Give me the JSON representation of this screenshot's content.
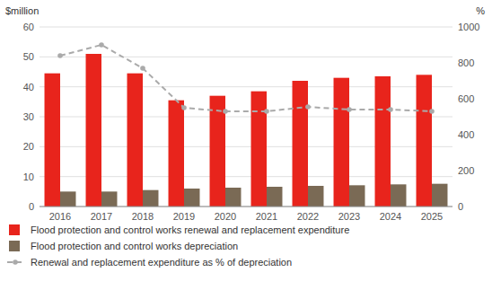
{
  "chart_data": {
    "type": "bar",
    "categories": [
      "2016",
      "2017",
      "2018",
      "2019",
      "2020",
      "2021",
      "2022",
      "2023",
      "2024",
      "2025"
    ],
    "ylabel": "$million",
    "y2label": "%",
    "series": [
      {
        "name": "Flood protection and control works renewal and replacement expenditure",
        "color": "#e8241c",
        "values": [
          44.5,
          51.0,
          44.5,
          35.5,
          37.0,
          38.5,
          42.0,
          43.0,
          43.5,
          44.0
        ]
      },
      {
        "name": "Flood protection and control works depreciation",
        "color": "#7a6a55",
        "values": [
          5.0,
          5.0,
          5.5,
          6.0,
          6.3,
          6.6,
          6.9,
          7.1,
          7.4,
          7.6
        ]
      },
      {
        "name": "Renewal and replacement expenditure as % of depreciation",
        "type": "line",
        "axis": "y2",
        "color": "#aaaaaa",
        "line_style": "dashed",
        "marker": "circle",
        "values": [
          840,
          900,
          770,
          550,
          530,
          530,
          555,
          540,
          540,
          530
        ]
      }
    ],
    "ylim": [
      0,
      60
    ],
    "yticks": [
      0,
      10,
      20,
      30,
      40,
      50,
      60
    ],
    "y2lim": [
      0,
      1000
    ],
    "y2ticks": [
      0,
      200,
      400,
      600,
      800,
      1000
    ],
    "grid": true,
    "legend": "bottom"
  }
}
